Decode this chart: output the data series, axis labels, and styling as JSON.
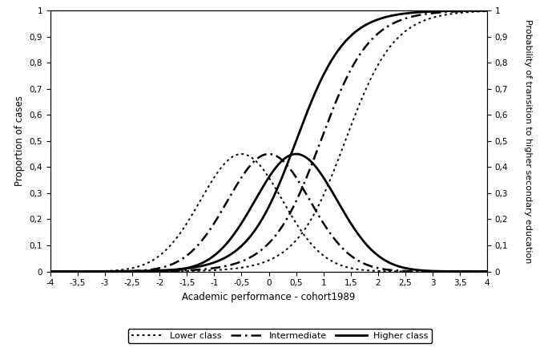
{
  "title": "",
  "xlabel": "Academic performance - cohort1989",
  "ylabel_left": "Proportion of cases",
  "ylabel_right": "Probability of transition to higher secondary education",
  "xlim": [
    -4,
    4
  ],
  "ylim": [
    0,
    1
  ],
  "xticks": [
    -4,
    -3.5,
    -3,
    -2.5,
    -2,
    -1.5,
    -1,
    -0.5,
    0,
    0.5,
    1,
    1.5,
    2,
    2.5,
    3,
    3.5,
    4
  ],
  "yticks": [
    0,
    0.1,
    0.2,
    0.3,
    0.4,
    0.5,
    0.6,
    0.7,
    0.8,
    0.9,
    1
  ],
  "background_color": "white",
  "figsize": [
    6.99,
    4.34
  ],
  "dpi": 100
}
